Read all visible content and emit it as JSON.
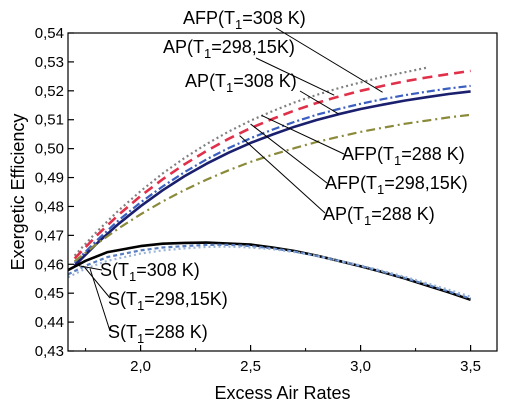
{
  "chart_data": {
    "type": "line",
    "title": "",
    "xlabel": "Excess Air Rates",
    "ylabel": "Exergetic Efficiency",
    "xlim": [
      1.67,
      3.62
    ],
    "ylim": [
      0.43,
      0.54
    ],
    "xticks": [
      2.0,
      2.5,
      3.0,
      3.5
    ],
    "xtick_labels": [
      "2,0",
      "2,5",
      "3,0",
      "3,5"
    ],
    "yticks": [
      0.43,
      0.44,
      0.45,
      0.46,
      0.47,
      0.48,
      0.49,
      0.5,
      0.51,
      0.52,
      0.53,
      0.54
    ],
    "ytick_labels": [
      "0,43",
      "0,44",
      "0,45",
      "0,46",
      "0,47",
      "0,48",
      "0,49",
      "0,50",
      "0,51",
      "0,52",
      "0,53",
      "0,54"
    ],
    "grid": false,
    "series": [
      {
        "name": "AFP(T1=308 K)",
        "color": "#808080",
        "dash": "2,3",
        "width": 2.2,
        "x": [
          1.7,
          1.8,
          1.9,
          2.0,
          2.1,
          2.2,
          2.3,
          2.4,
          2.5,
          2.6,
          2.7,
          2.8,
          2.9,
          3.0,
          3.1,
          3.2,
          3.3
        ],
        "y": [
          0.463,
          0.4712,
          0.4786,
          0.4853,
          0.4914,
          0.4968,
          0.5016,
          0.5059,
          0.5097,
          0.513,
          0.516,
          0.5186,
          0.5209,
          0.5229,
          0.5248,
          0.5264,
          0.528
        ]
      },
      {
        "name": "AP(T1=298,15K)",
        "color": "#e0304a",
        "dash": "10,6",
        "width": 2.6,
        "x": [
          1.7,
          1.8,
          1.9,
          2.0,
          2.1,
          2.2,
          2.3,
          2.4,
          2.5,
          2.6,
          2.7,
          2.8,
          2.9,
          3.0,
          3.1,
          3.2,
          3.3,
          3.4,
          3.5
        ],
        "y": [
          0.462,
          0.4699,
          0.4771,
          0.4836,
          0.4894,
          0.4946,
          0.4992,
          0.5034,
          0.5071,
          0.5103,
          0.5132,
          0.5158,
          0.518,
          0.52,
          0.5217,
          0.5233,
          0.5246,
          0.5258,
          0.5269
        ]
      },
      {
        "name": "AP(T1=308 K)",
        "color": "#3b5fc0",
        "dash": "8,3,2,3",
        "width": 2.2,
        "x": [
          1.7,
          1.8,
          1.9,
          2.0,
          2.1,
          2.2,
          2.3,
          2.4,
          2.5,
          2.6,
          2.7,
          2.8,
          2.9,
          3.0,
          3.1,
          3.2,
          3.3,
          3.4,
          3.5
        ],
        "y": [
          0.4605,
          0.4682,
          0.4752,
          0.4814,
          0.4869,
          0.4919,
          0.4963,
          0.5002,
          0.5036,
          0.5066,
          0.5093,
          0.5117,
          0.5137,
          0.5155,
          0.5171,
          0.5185,
          0.5197,
          0.5208,
          0.5217
        ]
      },
      {
        "name": "AFP(T1=288 K)",
        "color": "#1a1f6e",
        "dash": "",
        "width": 2.6,
        "x": [
          1.7,
          1.8,
          1.9,
          2.0,
          2.1,
          2.2,
          2.3,
          2.4,
          2.5,
          2.6,
          2.7,
          2.8,
          2.9,
          3.0,
          3.1,
          3.2,
          3.3,
          3.4,
          3.5
        ],
        "y": [
          0.4595,
          0.4671,
          0.474,
          0.4801,
          0.4856,
          0.4905,
          0.4948,
          0.4986,
          0.502,
          0.5049,
          0.5076,
          0.5099,
          0.5119,
          0.5137,
          0.5152,
          0.5166,
          0.5178,
          0.5189,
          0.5198
        ]
      },
      {
        "name": "AFP(T1=298,15K)",
        "color": "#8a8a3a",
        "dash": "9,4,2,4",
        "width": 2.2,
        "x": [
          1.7,
          1.8,
          1.9,
          2.0,
          2.1,
          2.2,
          2.3,
          2.4,
          2.5,
          2.6,
          2.7,
          2.8,
          2.9,
          3.0,
          3.1,
          3.2,
          3.3,
          3.4,
          3.5
        ],
        "y": [
          0.461,
          0.467,
          0.4724,
          0.4773,
          0.4817,
          0.4857,
          0.4893,
          0.4925,
          0.4954,
          0.4979,
          0.5002,
          0.5023,
          0.5041,
          0.5058,
          0.5072,
          0.5086,
          0.5097,
          0.5108,
          0.5117
        ]
      },
      {
        "name": "S(T1=308 K)",
        "color": "#000000",
        "dash": "",
        "width": 2.6,
        "x": [
          1.67,
          1.75,
          1.85,
          2.0,
          2.1,
          2.2,
          2.3,
          2.4,
          2.5,
          2.6,
          2.7,
          2.8,
          2.9,
          3.0,
          3.1,
          3.2,
          3.3,
          3.4,
          3.5
        ],
        "y": [
          0.458,
          0.4612,
          0.4642,
          0.4663,
          0.4671,
          0.4674,
          0.4675,
          0.4672,
          0.4668,
          0.4658,
          0.4646,
          0.463,
          0.4612,
          0.4593,
          0.4573,
          0.4551,
          0.4527,
          0.4503,
          0.4477
        ]
      },
      {
        "name": "S(T1=298,15K)",
        "color": "#5a7fc0",
        "dash": "4,3",
        "width": 2.2,
        "x": [
          1.67,
          1.75,
          1.85,
          2.0,
          2.1,
          2.2,
          2.3,
          2.4,
          2.5,
          2.6,
          2.7,
          2.8,
          2.9,
          3.0,
          3.1,
          3.2,
          3.3,
          3.4,
          3.5
        ],
        "y": [
          0.4565,
          0.4595,
          0.4625,
          0.4648,
          0.4658,
          0.4663,
          0.4667,
          0.4667,
          0.4663,
          0.4655,
          0.4644,
          0.4629,
          0.4612,
          0.4594,
          0.4574,
          0.4553,
          0.453,
          0.4506,
          0.4481
        ]
      },
      {
        "name": "S(T1=288 K)",
        "color": "#9ab4d8",
        "dash": "2,3",
        "width": 2.2,
        "x": [
          1.67,
          1.75,
          1.85,
          2.0,
          2.1,
          2.2,
          2.3,
          2.4,
          2.5,
          2.6,
          2.7,
          2.8,
          2.9,
          3.0,
          3.1,
          3.2,
          3.3,
          3.4,
          3.5
        ],
        "y": [
          0.4555,
          0.4585,
          0.4612,
          0.4637,
          0.4648,
          0.4655,
          0.466,
          0.4661,
          0.4658,
          0.4652,
          0.4642,
          0.4629,
          0.4613,
          0.4596,
          0.4577,
          0.4557,
          0.4535,
          0.4512,
          0.4488
        ]
      }
    ],
    "annotations": [
      {
        "label": "AFP(T",
        "sub": "1",
        "rest": "=308 K)",
        "target": [
          3.1,
          0.5195
        ]
      },
      {
        "label": "AP(T",
        "sub": "1",
        "rest": "=298,15K)",
        "target": [
          2.88,
          0.5185
        ]
      },
      {
        "label": "AP(T",
        "sub": "1",
        "rest": "=308 K)",
        "target": [
          2.9,
          0.512
        ]
      },
      {
        "label": "AFP(T",
        "sub": "1",
        "rest": "=288 K)",
        "target": [
          2.55,
          0.5115
        ]
      },
      {
        "label": "AFP(T",
        "sub": "1",
        "rest": "=298,15K)",
        "target": [
          2.5,
          0.5085
        ]
      },
      {
        "label": "AP(T",
        "sub": "1",
        "rest": "=288 K)",
        "target": [
          2.45,
          0.5045
        ]
      },
      {
        "label": "S(T",
        "sub": "1",
        "rest": "=308 K)",
        "target": [
          1.72,
          0.4595
        ]
      },
      {
        "label": "S(T",
        "sub": "1",
        "rest": "=298,15K)",
        "target": [
          1.745,
          0.459
        ]
      },
      {
        "label": "S(T",
        "sub": "1",
        "rest": "=288 K)",
        "target": [
          1.77,
          0.4585
        ]
      }
    ]
  }
}
